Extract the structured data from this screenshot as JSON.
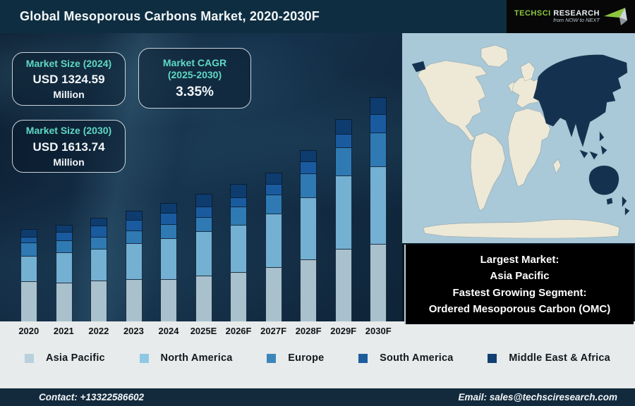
{
  "header": {
    "title": "Global Mesoporous Carbons Market, 2020-2030F",
    "logo": {
      "brand_primary": "TechSci",
      "brand_secondary": "Research",
      "tagline": "from NOW to NEXT"
    }
  },
  "stats": [
    {
      "label": "Market Size (2024)",
      "value": "USD 1324.59",
      "unit": "Million"
    },
    {
      "label_line1": "Market CAGR",
      "label_line2": "(2025-2030)",
      "value": "3.35%"
    },
    {
      "label": "Market Size (2030)",
      "value": "USD 1613.74",
      "unit": "Million"
    }
  ],
  "chart_data": {
    "type": "bar",
    "stacked": true,
    "title": "Global Mesoporous Carbons Market, 2020-2030F",
    "categories": [
      "2020",
      "2021",
      "2022",
      "2023",
      "2024",
      "2025E",
      "2026F",
      "2027F",
      "2028F",
      "2029F",
      "2030F"
    ],
    "value_note": "relative stacked-bar heights (chart has no value axis; stylized units)",
    "series": [
      {
        "name": "Asia Pacific",
        "color": "#a9c1cd",
        "values": [
          57,
          55,
          58,
          60,
          60,
          65,
          70,
          77,
          88,
          103,
          110
        ]
      },
      {
        "name": "North America",
        "color": "#74b0d2",
        "values": [
          36,
          43,
          45,
          51,
          58,
          63,
          67,
          76,
          88,
          104,
          110
        ]
      },
      {
        "name": "Europe",
        "color": "#2f7ab3",
        "values": [
          19,
          17,
          17,
          18,
          20,
          20,
          26,
          27,
          34,
          40,
          48
        ]
      },
      {
        "name": "South America",
        "color": "#1a5ba0",
        "values": [
          8,
          12,
          16,
          15,
          16,
          15,
          13,
          15,
          17,
          19,
          26
        ]
      },
      {
        "name": "Middle East & Africa",
        "color": "#0e3c6e",
        "values": [
          11,
          10,
          11,
          13,
          14,
          18,
          19,
          16,
          16,
          21,
          24
        ]
      }
    ],
    "annotations": [
      "Market Size (2024): USD 1324.59 Million",
      "Market CAGR (2025-2030): 3.35%",
      "Market Size (2030): USD 1613.74 Million"
    ],
    "legend_position": "bottom",
    "grid": false,
    "y_axis": "hidden"
  },
  "legend": [
    {
      "label": "Asia Pacific",
      "color": "#b9d1dd"
    },
    {
      "label": "North America",
      "color": "#8fc8e4"
    },
    {
      "label": "Europe",
      "color": "#3c86bc"
    },
    {
      "label": "South America",
      "color": "#1d5d9e"
    },
    {
      "label": "Middle East & Africa",
      "color": "#123f72"
    }
  ],
  "info_box": {
    "lines": [
      "Largest Market:",
      "Asia Pacific",
      "Fastest Growing Segment:",
      "Ordered Mesoporous Carbon (OMC)"
    ]
  },
  "map": {
    "ocean_color": "#a9c8d8",
    "land_color": "#ede9d6",
    "highlight_color": "#143250",
    "highlight_region": "Asia Pacific"
  },
  "footer": {
    "contact": "Contact: +13322586602",
    "email": "Email: sales@techsciresearch.com"
  }
}
